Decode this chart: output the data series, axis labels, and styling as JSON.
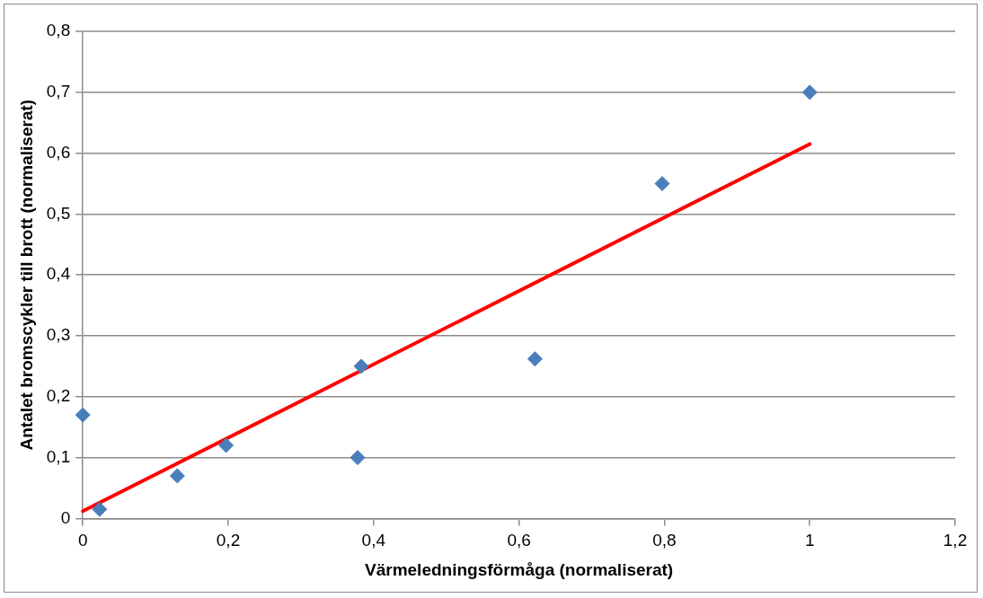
{
  "chart_data": {
    "type": "scatter",
    "xlabel": "Värmeledningsförmåga (normaliserat)",
    "ylabel": "Antalet bromscykler till brott (normaliserat)",
    "series": [
      {
        "type": "scatter",
        "color": "#4a7ebb",
        "x": [
          0,
          0.023,
          0.13,
          0.197,
          0.383,
          0.378,
          0.622,
          0.797,
          1
        ],
        "values": [
          0.17,
          0.015,
          0.07,
          0.12,
          0.25,
          0.1,
          0.262,
          0.55,
          0.7
        ],
        "marker": "diamond"
      },
      {
        "type": "line",
        "color": "#ff0000",
        "x": [
          0,
          1
        ],
        "values": [
          0.012,
          0.615
        ],
        "marker": "none",
        "line_style": "solid"
      }
    ],
    "xlim": [
      0,
      1.2
    ],
    "xticks": [
      0,
      {
        "value": 0.2,
        "label": "0,2"
      },
      {
        "value": 0.4,
        "label": "0,4"
      },
      {
        "value": 0.6,
        "label": "0,6"
      },
      {
        "value": 0.8,
        "label": "0,8"
      },
      1,
      {
        "value": 1.2,
        "label": "1,2"
      }
    ],
    "ylim": [
      0,
      0.8
    ],
    "yticks": [
      0,
      {
        "value": 0.1,
        "label": "0,1"
      },
      {
        "value": 0.2,
        "label": "0,2"
      },
      {
        "value": 0.3,
        "label": "0,3"
      },
      {
        "value": 0.4,
        "label": "0,4"
      },
      {
        "value": 0.5,
        "label": "0,5"
      },
      {
        "value": 0.6,
        "label": "0,6"
      },
      {
        "value": 0.7,
        "label": "0,7"
      },
      {
        "value": 0.8,
        "label": "0,8"
      }
    ],
    "grid": "y",
    "legend": false
  }
}
